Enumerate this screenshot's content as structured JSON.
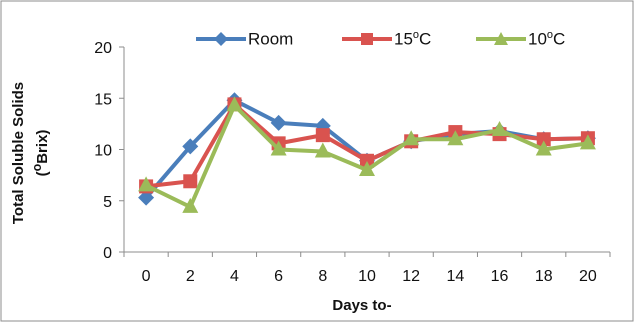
{
  "chart_data": {
    "type": "line",
    "xlabel": "Days to-",
    "ylabel_line1": "Total Soluble Solids",
    "ylabel_line2_pre": "(",
    "ylabel_line2_sup": "o",
    "ylabel_line2_post": "Brix)",
    "x": [
      0,
      2,
      4,
      6,
      8,
      10,
      12,
      14,
      16,
      18,
      20
    ],
    "x_tick_labels": [
      "0",
      "2",
      "4",
      "6",
      "8",
      "10",
      "12",
      "14",
      "16",
      "18",
      "20"
    ],
    "ylim": [
      0,
      20
    ],
    "y_ticks": [
      0,
      5,
      10,
      15,
      20
    ],
    "y_tick_labels": [
      "0",
      "5",
      "10",
      "15",
      "20"
    ],
    "grid": false,
    "legend_position": "top",
    "series": [
      {
        "name": "Room",
        "name_pre": "Room",
        "name_sup": "",
        "name_post": "",
        "color": "#4a7ebb",
        "marker": "diamond",
        "values": [
          5.3,
          10.3,
          14.8,
          12.6,
          12.3,
          8.9,
          10.8,
          11.5,
          11.8,
          11.0,
          11.1
        ]
      },
      {
        "name": "15oC",
        "name_pre": "15",
        "name_sup": "o",
        "name_post": "C",
        "color": "#d9534f",
        "marker": "square",
        "values": [
          6.4,
          6.9,
          14.4,
          10.6,
          11.4,
          8.9,
          10.8,
          11.7,
          11.5,
          11.0,
          11.1
        ]
      },
      {
        "name": "10oC",
        "name_pre": "10",
        "name_sup": "o",
        "name_post": "C",
        "color": "#9bbb59",
        "marker": "triangle",
        "values": [
          6.5,
          4.4,
          14.3,
          10.0,
          9.8,
          8.0,
          11.0,
          11.0,
          11.9,
          10.0,
          10.6
        ]
      }
    ]
  }
}
